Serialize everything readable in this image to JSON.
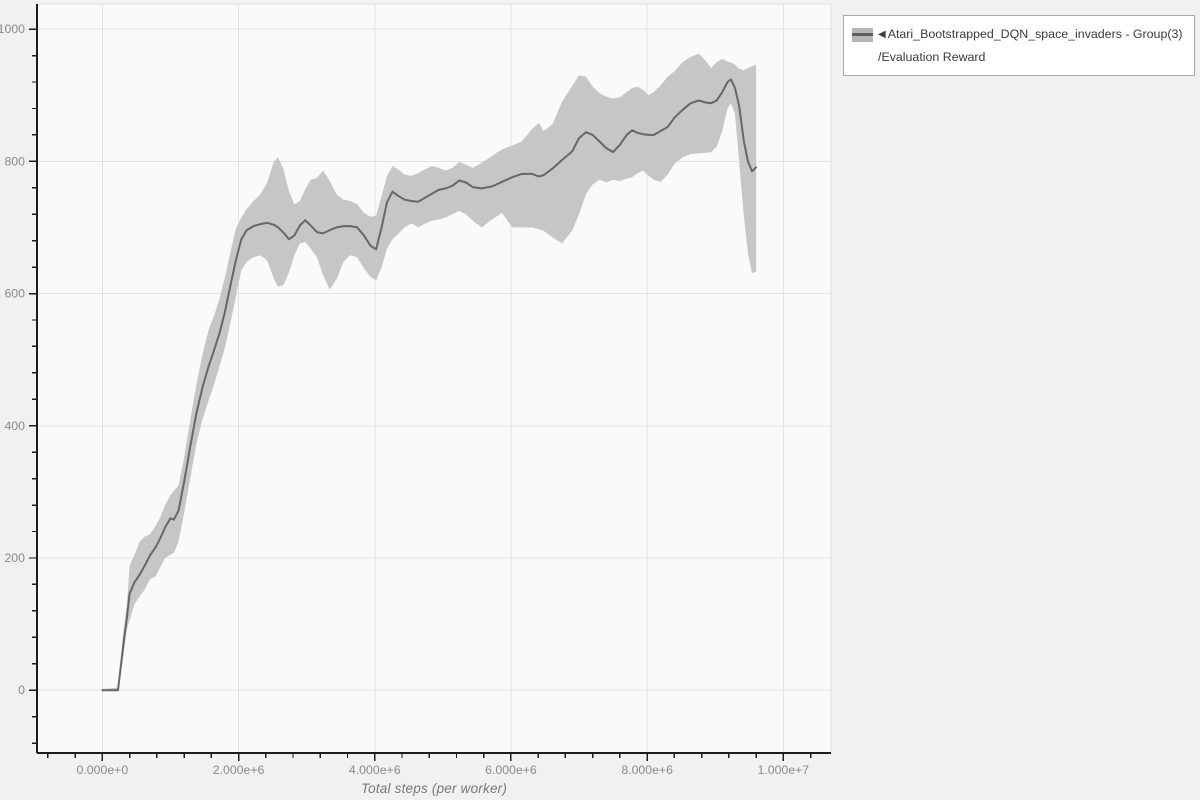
{
  "xlabel_title": "Total steps (per worker)",
  "legend": {
    "marker": "◀",
    "line1": "Atari_Bootstrapped_DQN_space_invaders - Group(3)",
    "line2": "/Evaluation Reward"
  },
  "chart_data": {
    "type": "line",
    "title": "",
    "xlabel": "Total steps (per worker)",
    "ylabel": "",
    "legend_position": "top-right",
    "grid": "major",
    "x_range": [
      -960000,
      10700000
    ],
    "y_range": [
      -95,
      1038
    ],
    "x_ticks": [
      {
        "v": 0,
        "label": "0.000e+0"
      },
      {
        "v": 2000000,
        "label": "2.000e+6"
      },
      {
        "v": 4000000,
        "label": "4.000e+6"
      },
      {
        "v": 6000000,
        "label": "6.000e+6"
      },
      {
        "v": 8000000,
        "label": "8.000e+6"
      },
      {
        "v": 10000000,
        "label": "1.000e+7"
      }
    ],
    "y_ticks": [
      {
        "v": 0,
        "label": "0"
      },
      {
        "v": 200,
        "label": "200"
      },
      {
        "v": 400,
        "label": "400"
      },
      {
        "v": 600,
        "label": "600"
      },
      {
        "v": 800,
        "label": "800"
      },
      {
        "v": 1000,
        "label": "1000"
      }
    ],
    "x_minor": {
      "start": -800000,
      "step": 400000,
      "end": 10400000
    },
    "y_minor": {
      "start": -80,
      "step": 40,
      "end": 1020
    },
    "colors": {
      "band": "#c6c6c6",
      "line": "#676767",
      "grid": "#e2e2e2",
      "axis": "#1c1c1c",
      "tick_label": "#8a8a8a",
      "plot_border": "#dddddd",
      "plot_bg": "#fafafa"
    },
    "series": [
      {
        "name": "Atari_Bootstrapped_DQN_space_invaders - Group(3)/Evaluation Reward",
        "x": [
          0,
          230000,
          300000,
          360000,
          400000,
          470000,
          550000,
          620000,
          700000,
          780000,
          850000,
          920000,
          1000000,
          1050000,
          1120000,
          1200000,
          1290000,
          1380000,
          1470000,
          1560000,
          1640000,
          1720000,
          1800000,
          1880000,
          1960000,
          2040000,
          2120000,
          2220000,
          2320000,
          2420000,
          2520000,
          2580000,
          2660000,
          2740000,
          2820000,
          2900000,
          2980000,
          3060000,
          3150000,
          3240000,
          3340000,
          3440000,
          3540000,
          3640000,
          3740000,
          3840000,
          3940000,
          4020000,
          4100000,
          4180000,
          4260000,
          4340000,
          4440000,
          4540000,
          4640000,
          4740000,
          4840000,
          4940000,
          5040000,
          5140000,
          5240000,
          5340000,
          5440000,
          5570000,
          5720000,
          5870000,
          6020000,
          6160000,
          6310000,
          6410000,
          6480000,
          6610000,
          6750000,
          6900000,
          7000000,
          7100000,
          7200000,
          7300000,
          7400000,
          7500000,
          7600000,
          7700000,
          7780000,
          7860000,
          7940000,
          8020000,
          8100000,
          8200000,
          8300000,
          8400000,
          8520000,
          8640000,
          8760000,
          8860000,
          8940000,
          9020000,
          9100000,
          9180000,
          9230000,
          9290000,
          9350000,
          9420000,
          9480000,
          9540000,
          9600000
        ],
        "mean": [
          0,
          0,
          62,
          110,
          146,
          163,
          175,
          188,
          204,
          216,
          230,
          246,
          260,
          258,
          272,
          315,
          368,
          418,
          458,
          490,
          514,
          540,
          572,
          612,
          650,
          682,
          696,
          702,
          705,
          707,
          704,
          700,
          692,
          682,
          688,
          703,
          711,
          703,
          693,
          691,
          696,
          700,
          702,
          702,
          700,
          688,
          672,
          667,
          700,
          738,
          754,
          748,
          742,
          740,
          739,
          745,
          751,
          757,
          759,
          763,
          771,
          768,
          761,
          759,
          762,
          769,
          776,
          781,
          781,
          777,
          779,
          789,
          802,
          815,
          835,
          844,
          840,
          830,
          820,
          814,
          825,
          840,
          847,
          843,
          841,
          840,
          840,
          846,
          852,
          866,
          878,
          888,
          892,
          889,
          888,
          892,
          904,
          920,
          924,
          911,
          884,
          831,
          800,
          785,
          791
        ],
        "lo": [
          0,
          0,
          45,
          92,
          106,
          130,
          142,
          152,
          168,
          172,
          186,
          200,
          205,
          208,
          225,
          268,
          320,
          372,
          410,
          438,
          462,
          490,
          518,
          555,
          595,
          635,
          648,
          655,
          658,
          650,
          622,
          610,
          613,
          632,
          658,
          676,
          678,
          668,
          655,
          628,
          606,
          622,
          648,
          658,
          655,
          638,
          625,
          620,
          640,
          668,
          682,
          690,
          700,
          706,
          700,
          706,
          710,
          712,
          715,
          720,
          725,
          720,
          710,
          700,
          712,
          722,
          700,
          700,
          700,
          697,
          695,
          685,
          676,
          695,
          720,
          750,
          765,
          772,
          768,
          772,
          770,
          774,
          776,
          782,
          786,
          778,
          772,
          769,
          780,
          796,
          806,
          811,
          812,
          813,
          814,
          822,
          845,
          880,
          888,
          872,
          800,
          718,
          662,
          631,
          633
        ],
        "hi": [
          2,
          4,
          80,
          130,
          188,
          205,
          225,
          232,
          236,
          248,
          262,
          280,
          295,
          302,
          310,
          352,
          408,
          462,
          508,
          545,
          566,
          592,
          625,
          662,
          698,
          715,
          728,
          740,
          750,
          768,
          800,
          806,
          788,
          755,
          735,
          740,
          758,
          772,
          775,
          786,
          770,
          750,
          742,
          740,
          735,
          722,
          716,
          718,
          748,
          778,
          793,
          788,
          780,
          778,
          782,
          788,
          793,
          790,
          786,
          790,
          799,
          795,
          790,
          798,
          808,
          818,
          824,
          830,
          849,
          858,
          846,
          856,
          890,
          914,
          930,
          928,
          913,
          903,
          898,
          895,
          897,
          905,
          911,
          913,
          908,
          900,
          905,
          915,
          928,
          936,
          950,
          958,
          963,
          952,
          941,
          950,
          955,
          951,
          950,
          946,
          940,
          938,
          941,
          944,
          946
        ]
      }
    ]
  }
}
